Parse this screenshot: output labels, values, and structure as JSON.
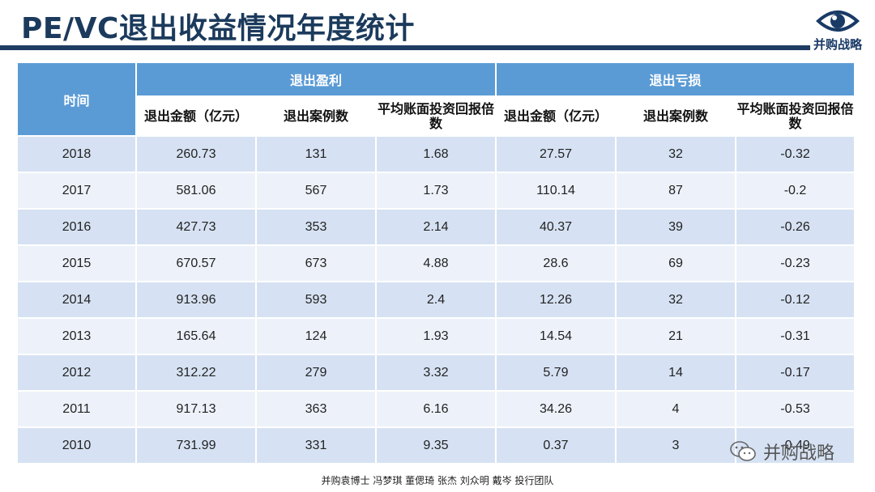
{
  "title": "PE/VC退出收益情况年度统计",
  "logo": {
    "icon": "eye-icon",
    "text": "并购战略",
    "color": "#1a3a66"
  },
  "table": {
    "time_header": "时间",
    "group_profit": "退出盈利",
    "group_loss": "退出亏损",
    "subheaders": [
      "退出金额（亿元）",
      "退出案例数",
      "平均账面投资回报倍数",
      "退出金额（亿元）",
      "退出案例数",
      "平均账面投资回报倍数"
    ],
    "rows": [
      {
        "year": "2018",
        "profit_amount": "260.73",
        "profit_cases": "131",
        "profit_multiple": "1.68",
        "loss_amount": "27.57",
        "loss_cases": "32",
        "loss_multiple": "-0.32"
      },
      {
        "year": "2017",
        "profit_amount": "581.06",
        "profit_cases": "567",
        "profit_multiple": "1.73",
        "loss_amount": "110.14",
        "loss_cases": "87",
        "loss_multiple": "-0.2"
      },
      {
        "year": "2016",
        "profit_amount": "427.73",
        "profit_cases": "353",
        "profit_multiple": "2.14",
        "loss_amount": "40.37",
        "loss_cases": "39",
        "loss_multiple": "-0.26"
      },
      {
        "year": "2015",
        "profit_amount": "670.57",
        "profit_cases": "673",
        "profit_multiple": "4.88",
        "loss_amount": "28.6",
        "loss_cases": "69",
        "loss_multiple": "-0.23"
      },
      {
        "year": "2014",
        "profit_amount": "913.96",
        "profit_cases": "593",
        "profit_multiple": "2.4",
        "loss_amount": "12.26",
        "loss_cases": "32",
        "loss_multiple": "-0.12"
      },
      {
        "year": "2013",
        "profit_amount": "165.64",
        "profit_cases": "124",
        "profit_multiple": "1.93",
        "loss_amount": "14.54",
        "loss_cases": "21",
        "loss_multiple": "-0.31"
      },
      {
        "year": "2012",
        "profit_amount": "312.22",
        "profit_cases": "279",
        "profit_multiple": "3.32",
        "loss_amount": "5.79",
        "loss_cases": "14",
        "loss_multiple": "-0.17"
      },
      {
        "year": "2011",
        "profit_amount": "917.13",
        "profit_cases": "363",
        "profit_multiple": "6.16",
        "loss_amount": "34.26",
        "loss_cases": "4",
        "loss_multiple": "-0.53"
      },
      {
        "year": "2010",
        "profit_amount": "731.99",
        "profit_cases": "331",
        "profit_multiple": "9.35",
        "loss_amount": "0.37",
        "loss_cases": "3",
        "loss_multiple": "-0.49"
      }
    ]
  },
  "footer": "并购袁博士 冯梦琪 董偲琦 张杰 刘众明 戴岑 投行团队",
  "watermark": {
    "icon": "wechat-icon",
    "text": "并购战略"
  },
  "colors": {
    "header_blue": "#5b9bd5",
    "title_navy": "#1b3a5c",
    "row_dark": "#d6e2f3",
    "row_light": "#edf2fa"
  }
}
